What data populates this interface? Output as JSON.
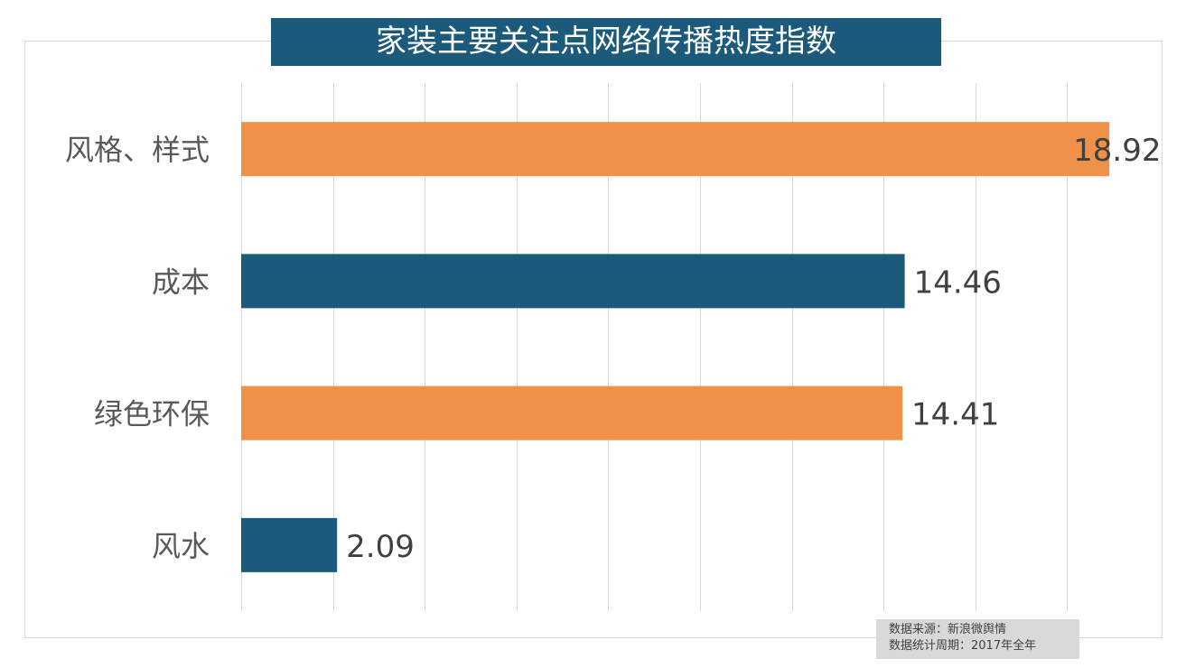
{
  "chart_data": {
    "type": "bar",
    "orientation": "horizontal",
    "title": "家装主要关注点网络传播热度指数",
    "categories": [
      "风格、样式",
      "成本",
      "绿色环保",
      "风水"
    ],
    "values": [
      18.92,
      14.46,
      14.41,
      2.09
    ],
    "value_labels": [
      "18.92",
      "14.46",
      "14.41",
      "2.09"
    ],
    "bar_colors": [
      "#f0914a",
      "#1b5a7a",
      "#f0914a",
      "#1b5a7a"
    ],
    "xlim": [
      0,
      20
    ],
    "grid_step": 2,
    "grid": true,
    "xlabel": "",
    "ylabel": ""
  },
  "footnote": {
    "source": "数据来源：新浪微舆情",
    "period": "数据统计周期：2017年全年"
  }
}
